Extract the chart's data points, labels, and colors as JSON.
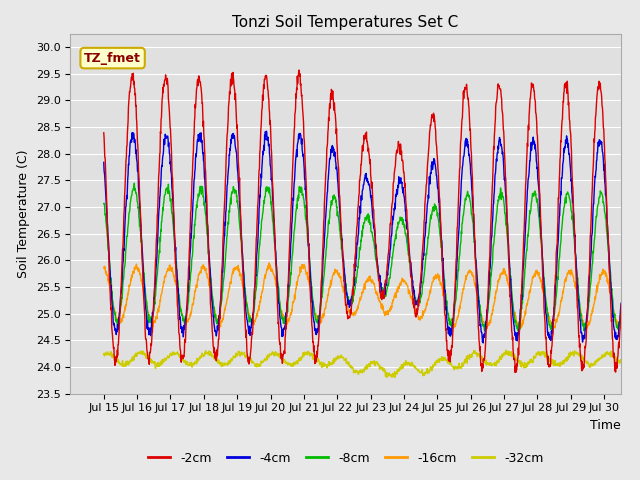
{
  "title": "Tonzi Soil Temperatures Set C",
  "xlabel": "Time",
  "ylabel": "Soil Temperature (C)",
  "annotation": "TZ_fmet",
  "ylim": [
    23.5,
    30.25
  ],
  "xlim": [
    14.0,
    30.5
  ],
  "yticks": [
    23.5,
    24.0,
    24.5,
    25.0,
    25.5,
    26.0,
    26.5,
    27.0,
    27.5,
    28.0,
    28.5,
    29.0,
    29.5,
    30.0
  ],
  "xtick_positions": [
    15,
    16,
    17,
    18,
    19,
    20,
    21,
    22,
    23,
    24,
    25,
    26,
    27,
    28,
    29,
    30
  ],
  "xtick_labels": [
    "Jul 15",
    "Jul 16",
    "Jul 17",
    "Jul 18",
    "Jul 19",
    "Jul 20",
    "Jul 21",
    "Jul 22",
    "Jul 23",
    "Jul 24",
    "Jul 25",
    "Jul 26",
    "Jul 27",
    "Jul 28",
    "Jul 29",
    "Jul 30"
  ],
  "colors": {
    "-2cm": "#dd0000",
    "-4cm": "#0000dd",
    "-8cm": "#00bb00",
    "-16cm": "#ff9900",
    "-32cm": "#cccc00"
  },
  "legend_labels": [
    "-2cm",
    "-4cm",
    "-8cm",
    "-16cm",
    "-32cm"
  ],
  "title_fontsize": 11,
  "axis_label_fontsize": 9,
  "tick_fontsize": 8,
  "legend_fontsize": 9,
  "bg_color": "#e8e8e8",
  "plot_bg_color": "#e0e0e0",
  "grid_color": "#ffffff",
  "linewidth": 1.0
}
